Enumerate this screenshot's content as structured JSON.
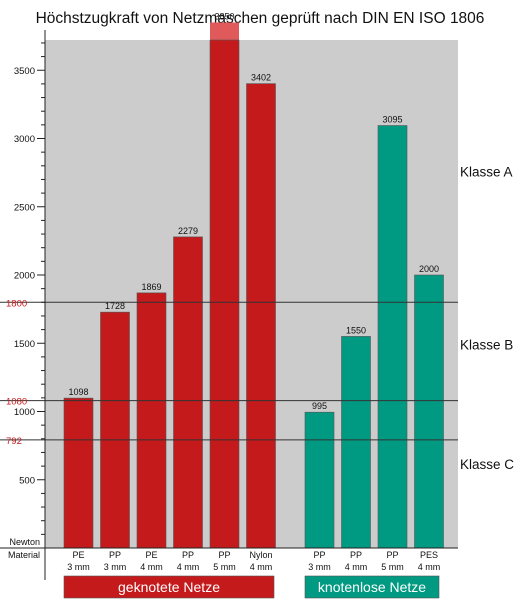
{
  "title": "Höchstzugkraft von Netzmaschen geprüft nach DIN EN ISO 1806",
  "chart_data": {
    "type": "bar",
    "title": "Höchstzugkraft von Netzmaschen geprüft nach DIN EN ISO 1806",
    "ylabel": "Newton",
    "xlabel": "Material",
    "ylim": [
      0,
      3850
    ],
    "yticks": [
      500,
      1000,
      1500,
      2000,
      2500,
      3000,
      3500
    ],
    "grid": false,
    "reference_lines": [
      {
        "value": 1800,
        "label": "1800",
        "class_label": "Klasse A"
      },
      {
        "value": 1080,
        "label": "1080",
        "class_label": "Klasse B"
      },
      {
        "value": 792,
        "label": "792",
        "class_label": "Klasse C"
      }
    ],
    "groups": [
      {
        "name": "geknotete Netze",
        "color": "#c41a1c",
        "bars": [
          {
            "material": "PE",
            "size": "3 mm",
            "value": 1098
          },
          {
            "material": "PP",
            "size": "3 mm",
            "value": 1728
          },
          {
            "material": "PE",
            "size": "4 mm",
            "value": 1869
          },
          {
            "material": "PP",
            "size": "4 mm",
            "value": 2279
          },
          {
            "material": "PP",
            "size": "5 mm",
            "value": 3850
          },
          {
            "material": "Nylon",
            "size": "4 mm",
            "value": 3402
          }
        ]
      },
      {
        "name": "knotenlose Netze",
        "color": "#009a82",
        "bars": [
          {
            "material": "PP",
            "size": "3 mm",
            "value": 995
          },
          {
            "material": "PP",
            "size": "4 mm",
            "value": 1550
          },
          {
            "material": "PP",
            "size": "5 mm",
            "value": 3095
          },
          {
            "material": "PES",
            "size": "4 mm",
            "value": 2000
          }
        ]
      }
    ],
    "highlight_color": "#e05a5c",
    "plot_background": "#cccccc",
    "reference_label_color": "#c41a1c"
  }
}
